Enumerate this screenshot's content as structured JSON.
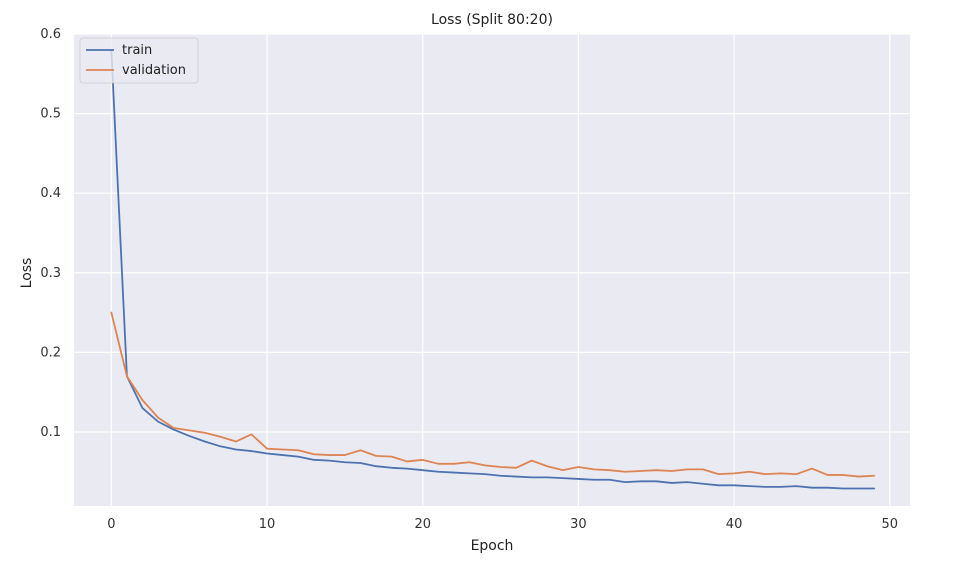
{
  "chart_data": {
    "type": "line",
    "title": "Loss (Split 80:20)",
    "xlabel": "Epoch",
    "ylabel": "Loss",
    "xlim": [
      -2.4,
      51.3
    ],
    "ylim": [
      0.007,
      0.6
    ],
    "xticks": [
      0,
      10,
      20,
      30,
      40,
      50
    ],
    "yticks": [
      0.1,
      0.2,
      0.3,
      0.4,
      0.5,
      0.6
    ],
    "grid": true,
    "legend_position": "upper-left",
    "background": "#eaeaf2",
    "series": [
      {
        "name": "train",
        "color": "#4c72b0",
        "x": [
          0,
          1,
          2,
          3,
          4,
          5,
          6,
          7,
          8,
          9,
          10,
          11,
          12,
          13,
          14,
          15,
          16,
          17,
          18,
          19,
          20,
          21,
          22,
          23,
          24,
          25,
          26,
          27,
          28,
          29,
          30,
          31,
          32,
          33,
          34,
          35,
          36,
          37,
          38,
          39,
          40,
          41,
          42,
          43,
          44,
          45,
          46,
          47,
          48,
          49
        ],
        "values": [
          0.58,
          0.17,
          0.13,
          0.113,
          0.103,
          0.095,
          0.088,
          0.082,
          0.078,
          0.076,
          0.073,
          0.071,
          0.069,
          0.065,
          0.064,
          0.062,
          0.061,
          0.057,
          0.055,
          0.054,
          0.052,
          0.05,
          0.049,
          0.048,
          0.047,
          0.045,
          0.044,
          0.043,
          0.043,
          0.042,
          0.041,
          0.04,
          0.04,
          0.037,
          0.038,
          0.038,
          0.036,
          0.037,
          0.035,
          0.033,
          0.033,
          0.032,
          0.031,
          0.031,
          0.032,
          0.03,
          0.03,
          0.029,
          0.029,
          0.029
        ]
      },
      {
        "name": "validation",
        "color": "#dd8452",
        "x": [
          0,
          1,
          2,
          3,
          4,
          5,
          6,
          7,
          8,
          9,
          10,
          11,
          12,
          13,
          14,
          15,
          16,
          17,
          18,
          19,
          20,
          21,
          22,
          23,
          24,
          25,
          26,
          27,
          28,
          29,
          30,
          31,
          32,
          33,
          34,
          35,
          36,
          37,
          38,
          39,
          40,
          41,
          42,
          43,
          44,
          45,
          46,
          47,
          48,
          49
        ],
        "values": [
          0.25,
          0.17,
          0.14,
          0.118,
          0.105,
          0.102,
          0.099,
          0.094,
          0.088,
          0.097,
          0.079,
          0.078,
          0.077,
          0.072,
          0.071,
          0.071,
          0.077,
          0.07,
          0.069,
          0.063,
          0.065,
          0.06,
          0.06,
          0.062,
          0.058,
          0.056,
          0.055,
          0.064,
          0.057,
          0.052,
          0.056,
          0.053,
          0.052,
          0.05,
          0.051,
          0.052,
          0.051,
          0.053,
          0.053,
          0.047,
          0.048,
          0.05,
          0.047,
          0.048,
          0.047,
          0.054,
          0.046,
          0.046,
          0.044,
          0.045
        ]
      }
    ]
  }
}
